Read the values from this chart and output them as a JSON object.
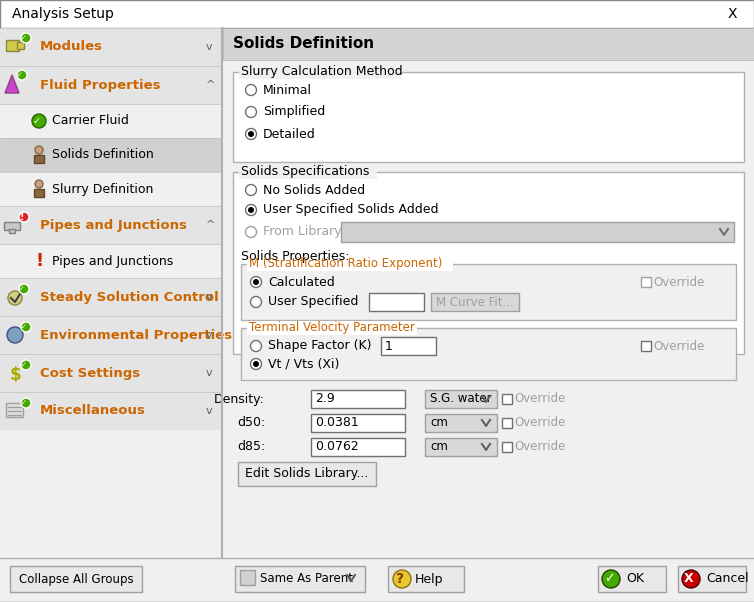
{
  "title": "Analysis Setup",
  "bg_color": "#f0f0f0",
  "white": "#ffffff",
  "panel_bg": "#e8e8e8",
  "selected_row_bg": "#d0d0d0",
  "border_color": "#a0a0a0",
  "text_color": "#000000",
  "orange_text": "#cc6600",
  "disabled_text": "#a0a0a0",
  "green_check": "#44aa00",
  "red_x": "#cc0000",
  "right_panel_title": "Solids Definition",
  "slurry_method_label": "Slurry Calculation Method",
  "slurry_options": [
    "Minimal",
    "Simplified",
    "Detailed"
  ],
  "slurry_selected": 2,
  "solids_spec_label": "Solids Specifications",
  "solids_spec_options": [
    "No Solids Added",
    "User Specified Solids Added"
  ],
  "solids_spec_selected": 1,
  "from_library_label": "From Library",
  "solids_props_label": "Solids Properties:",
  "m_exponent_label": "M (Stratification Ratio Exponent)",
  "m_options": [
    "Calculated",
    "User Specified"
  ],
  "m_selected": 0,
  "terminal_vel_label": "Terminal Velocity Parameter",
  "tv_options": [
    "Shape Factor (K)",
    "Vt / Vts (Xi)"
  ],
  "tv_selected": 1,
  "tv_value": "1",
  "density_label": "Density:",
  "density_value": "2.9",
  "density_unit": "S.G. water",
  "d50_label": "d50:",
  "d50_value": "0.0381",
  "d50_unit": "cm",
  "d85_label": "d85:",
  "d85_value": "0.0762",
  "d85_unit": "cm",
  "edit_lib_btn": "Edit Solids Library...",
  "collapse_btn": "Collapse All Groups",
  "same_as_parent": "Same As Parent",
  "help_label": "Help",
  "ok_label": "OK",
  "cancel_label": "Cancel"
}
